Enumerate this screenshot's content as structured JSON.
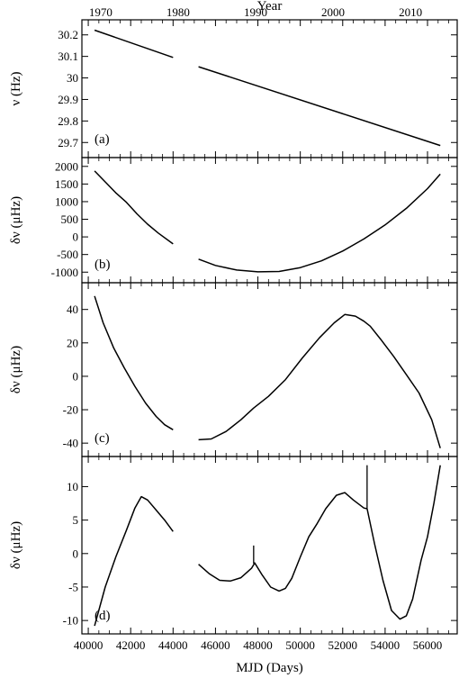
{
  "chart_data": {
    "type": "line",
    "xlabel": "MJD (Days)",
    "top_axis_label": "Year",
    "xlim": [
      39700,
      57400
    ],
    "x_ticks": [
      40000,
      42000,
      44000,
      46000,
      48000,
      50000,
      52000,
      54000,
      56000
    ],
    "top_ticks": [
      {
        "label": "1970",
        "mjd": 40587
      },
      {
        "label": "1980",
        "mjd": 44239
      },
      {
        "label": "1990",
        "mjd": 47892
      },
      {
        "label": "2000",
        "mjd": 51544
      },
      {
        "label": "2010",
        "mjd": 55197
      }
    ],
    "grid": false,
    "panels": [
      {
        "tag": "(a)",
        "ylabel": "ν (Hz)",
        "ylim": [
          29.63,
          30.27
        ],
        "y_ticks": [
          29.7,
          29.8,
          29.9,
          30.0,
          30.1,
          30.2
        ],
        "y_tick_labels": [
          "29.7",
          "29.8",
          "29.9",
          "30",
          "30.1",
          "30.2"
        ],
        "segments": [
          {
            "x": [
              40300,
              44000
            ],
            "y": [
              30.222,
              30.095
            ]
          },
          {
            "x": [
              45200,
              56600
            ],
            "y": [
              30.052,
              29.686
            ]
          }
        ]
      },
      {
        "tag": "(b)",
        "ylabel": "δν (μHz)",
        "ylim": [
          -1300,
          2250
        ],
        "y_ticks": [
          -1000,
          -500,
          0,
          500,
          1000,
          1500,
          2000
        ],
        "y_tick_labels": [
          "-1000",
          "-500",
          "0",
          "500",
          "1000",
          "1500",
          "2000"
        ],
        "segments": [
          {
            "x": [
              40300,
              40800,
              41300,
              41800,
              42300,
              42800,
              43300,
              44000
            ],
            "y": [
              1870,
              1560,
              1250,
              980,
              650,
              360,
              110,
              -200
            ]
          },
          {
            "x": [
              45200,
              46000,
              47000,
              48000,
              49000,
              50000,
              51000,
              52000,
              53000,
              54000,
              55000,
              56000,
              56600
            ],
            "y": [
              -630,
              -810,
              -940,
              -990,
              -980,
              -870,
              -680,
              -400,
              -60,
              340,
              810,
              1370,
              1780
            ]
          }
        ]
      },
      {
        "tag": "(c)",
        "ylabel": "δν (μHz)",
        "ylim": [
          -48,
          56
        ],
        "y_ticks": [
          -40,
          -20,
          0,
          20,
          40
        ],
        "y_tick_labels": [
          "-40",
          "-20",
          "0",
          "20",
          "40"
        ],
        "segments": [
          {
            "x": [
              40300,
              40700,
              41200,
              41700,
              42200,
              42700,
              43200,
              43600,
              44000
            ],
            "y": [
              48,
              32,
              17,
              5,
              -6,
              -16,
              -24,
              -29,
              -32
            ]
          },
          {
            "x": [
              45200,
              45800,
              46500,
              47200,
              47800,
              48500,
              49300,
              50100,
              50900,
              51600,
              52100,
              52600,
              53000,
              53300,
              53800,
              54400,
              55000,
              55600,
              56200,
              56600
            ],
            "y": [
              -38,
              -37.5,
              -33,
              -26,
              -19,
              -12,
              -2,
              11,
              23,
              32,
              37,
              36,
              33,
              30,
              22,
              12,
              1,
              -10,
              -26,
              -43
            ]
          }
        ]
      },
      {
        "tag": "(d)",
        "ylabel": "δν (μHz)",
        "ylim": [
          -12,
          14.5
        ],
        "y_ticks": [
          -10,
          -5,
          0,
          5,
          10
        ],
        "y_tick_labels": [
          "-10",
          "-5",
          "0",
          "5",
          "10"
        ],
        "segments": [
          {
            "x": [
              40300,
              40800,
              41300,
              41800,
              42200,
              42500,
              42800,
              43200,
              43600,
              44000
            ],
            "y": [
              -10.8,
              -5,
              -0.5,
              3.5,
              6.8,
              8.5,
              8,
              6.5,
              5,
              3.3
            ]
          },
          {
            "x": [
              45200,
              45700,
              46200,
              46700,
              47200,
              47700,
              47850,
              48200,
              48600,
              49000,
              49300,
              49600,
              50000,
              50400,
              50800,
              51200,
              51700,
              52100,
              52500,
              53000,
              53150
            ],
            "y": [
              -1.6,
              -3,
              -4,
              -4.1,
              -3.6,
              -2.2,
              -1.4,
              -3.2,
              -5,
              -5.6,
              -5.2,
              -3.7,
              -0.5,
              2.5,
              4.5,
              6.7,
              8.7,
              9.1,
              8,
              6.8,
              6.7
            ]
          },
          {
            "x": [
              53150,
              53500,
              53900,
              54300,
              54700,
              55000,
              55300,
              55700,
              56000,
              56300,
              56600
            ],
            "y": [
              6.7,
              1.5,
              -4,
              -8.5,
              -9.8,
              -9.3,
              -6.8,
              -1,
              2.5,
              7.5,
              13.2
            ]
          }
        ],
        "spikes": [
          {
            "x": 47800,
            "y0": -1.5,
            "y1": 1.2
          },
          {
            "x": 53150,
            "y0": 6.7,
            "y1": 13.2
          }
        ]
      }
    ]
  }
}
